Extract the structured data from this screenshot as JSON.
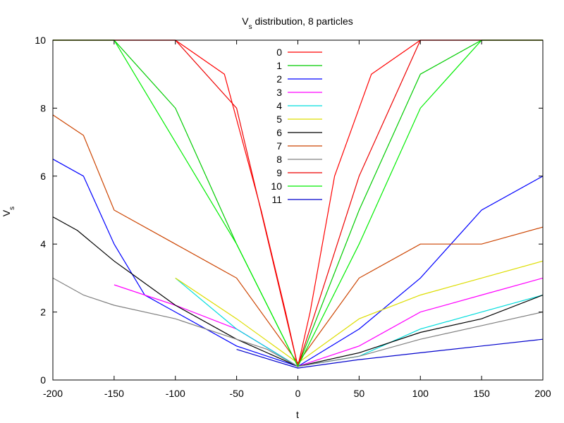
{
  "chart_data": {
    "type": "line",
    "title_main": "V",
    "title_sub": "s",
    "title_rest": " distribution, 8 particles",
    "xlabel": "t",
    "ylabel_main": "V",
    "ylabel_sub": "s",
    "xlim": [
      -200,
      200
    ],
    "ylim": [
      0,
      10
    ],
    "xticks": [
      "-200",
      "-150",
      "-100",
      "-50",
      "0",
      "50",
      "100",
      "150",
      "200"
    ],
    "yticks": [
      "0",
      "2",
      "4",
      "6",
      "8",
      "10"
    ],
    "grid": false,
    "legend_position": "top-center",
    "series": [
      {
        "name": "0",
        "color": "#ff0000",
        "x": [
          -200,
          -150,
          -100,
          -60,
          -30,
          -10,
          0,
          10,
          30,
          60,
          100,
          150,
          200
        ],
        "y": [
          10,
          10,
          10,
          9,
          5,
          2,
          0.4,
          2,
          6,
          9,
          10,
          10,
          10
        ]
      },
      {
        "name": "1",
        "color": "#00cc00",
        "x": [
          -200,
          -170,
          -150,
          -100,
          -50,
          0,
          50,
          100,
          150,
          200
        ],
        "y": [
          10,
          10,
          10,
          8,
          4,
          0.4,
          5,
          9,
          10,
          10
        ]
      },
      {
        "name": "2",
        "color": "#0000ff",
        "x": [
          -200,
          -175,
          -150,
          -125,
          -100,
          -50,
          0,
          50,
          100,
          150,
          200
        ],
        "y": [
          6.5,
          6,
          4,
          2.5,
          2,
          1,
          0.4,
          1.5,
          3,
          5,
          6
        ]
      },
      {
        "name": "3",
        "color": "#ff00ff",
        "x": [
          -150,
          -100,
          -50,
          0,
          50,
          100,
          150,
          200
        ],
        "y": [
          2.8,
          2.2,
          1.5,
          0.4,
          1,
          2,
          2.5,
          3
        ]
      },
      {
        "name": "4",
        "color": "#00dddd",
        "x": [
          -100,
          -50,
          0,
          50,
          100,
          150,
          200
        ],
        "y": [
          3,
          1.5,
          0.4,
          0.7,
          1.5,
          2,
          2.5
        ]
      },
      {
        "name": "5",
        "color": "#dddd00",
        "x": [
          -100,
          -50,
          0,
          50,
          100,
          150,
          200
        ],
        "y": [
          3,
          1.8,
          0.5,
          1.8,
          2.5,
          3,
          3.5
        ]
      },
      {
        "name": "6",
        "color": "#000000",
        "x": [
          -200,
          -180,
          -150,
          -100,
          -50,
          0,
          50,
          100,
          150,
          200
        ],
        "y": [
          4.8,
          4.4,
          3.5,
          2.2,
          1.2,
          0.4,
          0.8,
          1.4,
          1.8,
          2.5
        ]
      },
      {
        "name": "7",
        "color": "#cc4400",
        "x": [
          -200,
          -175,
          -150,
          -100,
          -50,
          0,
          50,
          100,
          150,
          200
        ],
        "y": [
          7.8,
          7.2,
          5,
          4,
          3,
          0.5,
          3,
          4,
          4,
          4.5
        ]
      },
      {
        "name": "8",
        "color": "#808080",
        "x": [
          -200,
          -175,
          -150,
          -100,
          -50,
          -25,
          0,
          50,
          100,
          150,
          200
        ],
        "y": [
          3,
          2.5,
          2.2,
          1.8,
          1.2,
          0.9,
          0.4,
          0.7,
          1.2,
          1.6,
          2
        ]
      },
      {
        "name": "9",
        "color": "#ee0000",
        "x": [
          -200,
          -150,
          -100,
          -50,
          0,
          50,
          100,
          150,
          200
        ],
        "y": [
          10,
          10,
          10,
          8,
          0.4,
          6,
          10,
          10,
          10
        ]
      },
      {
        "name": "10",
        "color": "#00ee00",
        "x": [
          -200,
          -150,
          -100,
          -50,
          0,
          50,
          100,
          150,
          200
        ],
        "y": [
          10,
          10,
          7,
          4,
          0.4,
          4,
          8,
          10,
          10
        ]
      },
      {
        "name": "11",
        "color": "#0000cc",
        "x": [
          -50,
          0,
          50,
          100,
          150,
          200
        ],
        "y": [
          0.9,
          0.35,
          0.6,
          0.8,
          1,
          1.2
        ]
      }
    ]
  }
}
